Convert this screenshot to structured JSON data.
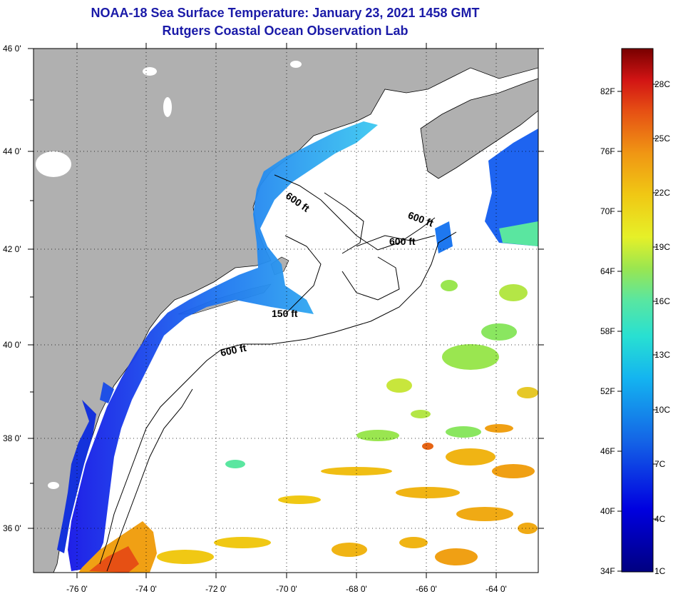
{
  "title_line1": "NOAA-18 Sea Surface Temperature:  January 23, 2021 1458 GMT",
  "title_line2": "Rutgers Coastal Ocean Observation Lab",
  "lat_labels": [
    "46 0'",
    "44 0'",
    "42 0'",
    "40 0'",
    "38 0'",
    "36 0'"
  ],
  "lon_labels": [
    "-76 0'",
    "-74 0'",
    "-72 0'",
    "-70 0'",
    "-68 0'",
    "-66 0'",
    "-64 0'"
  ],
  "contours": [
    "600 ft",
    "600 ft",
    "600 ft",
    "150 ft",
    "600 ft"
  ],
  "colorbar_f": [
    "82F",
    "76F",
    "70F",
    "64F",
    "58F",
    "52F",
    "46F",
    "40F",
    "34F"
  ],
  "colorbar_c": [
    "28C",
    "25C",
    "22C",
    "19C",
    "16C",
    "13C",
    "10C",
    "7C",
    "4C",
    "1C"
  ],
  "colors": {
    "land": "#b0b0b0",
    "title": "#1a1aa8"
  }
}
